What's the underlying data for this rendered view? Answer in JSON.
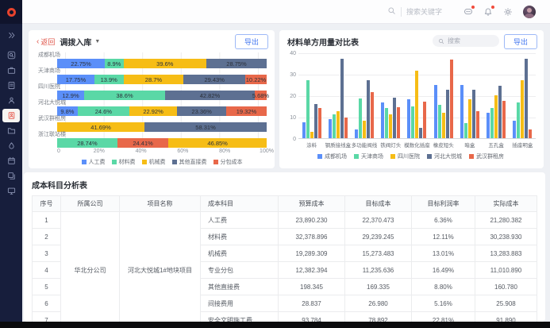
{
  "topbar": {
    "search_placeholder": "搜索关键字",
    "icons": [
      {
        "icon": "message-icon",
        "badge": true
      },
      {
        "icon": "bell-icon",
        "badge": true
      },
      {
        "icon": "gear-icon",
        "badge": false
      },
      {
        "icon": "avatar",
        "badge": false
      }
    ]
  },
  "sidebar": {
    "items": [
      {
        "icon": "expand-icon",
        "active": false
      },
      {
        "icon": "search-icon",
        "active": false
      },
      {
        "icon": "briefcase-icon",
        "active": false
      },
      {
        "icon": "clipboard-icon",
        "active": false
      },
      {
        "icon": "user-icon",
        "active": false
      },
      {
        "icon": "cost-module-icon",
        "active": true
      },
      {
        "icon": "folder-icon",
        "active": false
      },
      {
        "icon": "droplet-icon",
        "active": false
      },
      {
        "icon": "calendar-icon",
        "active": false
      },
      {
        "icon": "layers-icon",
        "active": false
      },
      {
        "icon": "monitor-icon",
        "active": false
      }
    ]
  },
  "left_panel": {
    "back_label": "返回",
    "title": "调拨入库",
    "export_label": "导出",
    "chart_data": {
      "type": "bar",
      "orientation": "horizontal-stacked",
      "unit": "percent",
      "x_ticks": [
        "0",
        "20%",
        "40%",
        "60%",
        "80%",
        "100%"
      ],
      "series_legend": [
        "人工费",
        "材料费",
        "机械费",
        "其他直接费",
        "分包成本"
      ],
      "series_colors": [
        "#5B8FF9",
        "#5AD8A6",
        "#F6BD16",
        "#5D7092",
        "#E8684A"
      ],
      "rows": [
        {
          "category": "成都机场",
          "segments": [
            {
              "series": "人工费",
              "value": 22.75,
              "label": "22.75%"
            },
            {
              "series": "材料费",
              "value": 8.9,
              "label": "8.9%"
            },
            {
              "series": "机械费",
              "value": 39.6,
              "label": "39.6%"
            },
            {
              "series": "其他直接费",
              "value": 28.75,
              "label": "28.75%"
            }
          ]
        },
        {
          "category": "天津商场",
          "segments": [
            {
              "series": "人工费",
              "value": 17.75,
              "label": "17.75%"
            },
            {
              "series": "材料费",
              "value": 13.9,
              "label": "13.9%"
            },
            {
              "series": "机械费",
              "value": 28.7,
              "label": "28.7%"
            },
            {
              "series": "其他直接费",
              "value": 29.43,
              "label": "29.43%"
            },
            {
              "series": "分包成本",
              "value": 10.22,
              "label": "10.22%"
            }
          ]
        },
        {
          "category": "四川医院",
          "segments": [
            {
              "series": "人工费",
              "value": 12.9,
              "label": "12.9%"
            },
            {
              "series": "材料费",
              "value": 38.6,
              "label": "38.6%"
            },
            {
              "series": "其他直接费",
              "value": 42.82,
              "label": "42.82%"
            },
            {
              "series": "分包成本",
              "value": 5.68,
              "label": "5.68%"
            }
          ]
        },
        {
          "category": "河北大悦城",
          "segments": [
            {
              "series": "人工费",
              "value": 9.8,
              "label": "9.8%"
            },
            {
              "series": "材料费",
              "value": 24.6,
              "label": "24.6%"
            },
            {
              "series": "机械费",
              "value": 22.92,
              "label": "22.92%"
            },
            {
              "series": "其他直接费",
              "value": 23.36,
              "label": "23.36%"
            },
            {
              "series": "分包成本",
              "value": 19.32,
              "label": "19.32%"
            }
          ]
        },
        {
          "category": "武汉群租房",
          "segments": [
            {
              "series": "机械费",
              "value": 41.69,
              "label": "41.69%"
            },
            {
              "series": "其他直接费",
              "value": 58.31,
              "label": "58.31%"
            }
          ]
        },
        {
          "category": "浙江联站楼",
          "segments": [
            {
              "series": "材料费",
              "value": 28.74,
              "label": "28.74%"
            },
            {
              "series": "分包成本",
              "value": 24.41,
              "label": "24.41%"
            },
            {
              "series": "机械费",
              "value": 46.85,
              "label": "46.85%"
            }
          ]
        }
      ]
    }
  },
  "right_panel": {
    "title": "材料单方用量对比表",
    "search_placeholder": "搜索",
    "export_label": "导出",
    "chart_data": {
      "type": "bar",
      "orientation": "vertical-grouped",
      "ylim": [
        0,
        40
      ],
      "y_ticks": [
        0,
        10,
        20,
        30,
        40
      ],
      "categories": [
        "涂料",
        "钢质接线盒",
        "多功能阀线",
        "铁阀灯头",
        "模数化插座",
        "橡皮短头",
        "暗盒",
        "五孔盒",
        "插座明盒"
      ],
      "series": [
        {
          "name": "成都机场",
          "color": "#5B8FF9",
          "values": [
            7.5,
            9,
            4,
            16.5,
            18,
            25,
            25,
            12,
            8
          ]
        },
        {
          "name": "天津商场",
          "color": "#5AD8A6",
          "values": [
            27,
            11,
            18.5,
            14,
            15,
            15.5,
            7,
            14,
            16.5
          ]
        },
        {
          "name": "四川医院",
          "color": "#F6BD16",
          "values": [
            3,
            12.5,
            8,
            11,
            31.5,
            12,
            18,
            20,
            27
          ]
        },
        {
          "name": "河北大悦城",
          "color": "#5D7092",
          "values": [
            16,
            37,
            27,
            19,
            5,
            22.5,
            22.5,
            24.5,
            37
          ]
        },
        {
          "name": "武汉群租房",
          "color": "#E8684A",
          "values": [
            14,
            9.5,
            21.5,
            14.5,
            17,
            36.5,
            12.5,
            17.5,
            4
          ]
        }
      ]
    }
  },
  "table_panel": {
    "title": "成本科目分析表",
    "columns": [
      "序号",
      "所属公司",
      "项目名称",
      "成本科目",
      "预算成本",
      "目标成本",
      "目标利润率",
      "实际成本"
    ],
    "company": "华北分公司",
    "project": "河北大悦城1#地块项目",
    "rows": [
      {
        "no": "1",
        "subject": "人工费",
        "budget": "23,890.230",
        "target": "22,370.473",
        "margin": "6.36%",
        "actual": "21,280.382"
      },
      {
        "no": "2",
        "subject": "材料费",
        "budget": "32,378.896",
        "target": "29,239.245",
        "margin": "12.11%",
        "actual": "30,238.930"
      },
      {
        "no": "3",
        "subject": "机械费",
        "budget": "19,289.309",
        "target": "15,273.483",
        "margin": "13.01%",
        "actual": "13,283.883"
      },
      {
        "no": "4",
        "subject": "专业分包",
        "budget": "12,382.394",
        "target": "11,235.636",
        "margin": "16.49%",
        "actual": "11,010.890"
      },
      {
        "no": "5",
        "subject": "其他直接费",
        "budget": "198.345",
        "target": "169.335",
        "margin": "8.80%",
        "actual": "160.780"
      },
      {
        "no": "6",
        "subject": "间接费用",
        "budget": "28.837",
        "target": "26.980",
        "margin": "5.16%",
        "actual": "25.908"
      },
      {
        "no": "7",
        "subject": "安全文明施工费",
        "budget": "93.784",
        "target": "78.892",
        "margin": "22.81%",
        "actual": "91.890"
      }
    ]
  },
  "colors": {
    "accent_blue": "#4679f0",
    "back_red": "#e0564a",
    "sidebar_bg": "#171e3c",
    "series": [
      "#5B8FF9",
      "#5AD8A6",
      "#F6BD16",
      "#5D7092",
      "#E8684A"
    ]
  }
}
